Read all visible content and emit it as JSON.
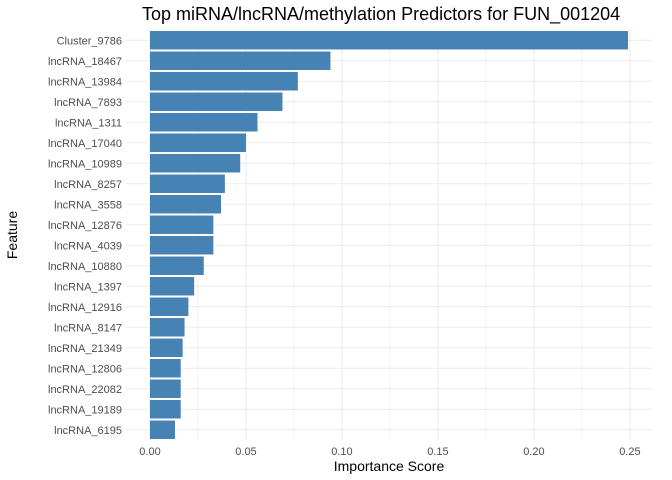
{
  "chart_data": {
    "type": "bar",
    "orientation": "horizontal",
    "title": "Top miRNA/lncRNA/methylation Predictors for FUN_001204",
    "xlabel": "Importance Score",
    "ylabel": "Feature",
    "categories": [
      "Cluster_9786",
      "lncRNA_18467",
      "lncRNA_13984",
      "lncRNA_7893",
      "lncRNA_1311",
      "lncRNA_17040",
      "lncRNA_10989",
      "lncRNA_8257",
      "lncRNA_3558",
      "lncRNA_12876",
      "lncRNA_4039",
      "lncRNA_10880",
      "lncRNA_1397",
      "lncRNA_12916",
      "lncRNA_8147",
      "lncRNA_21349",
      "lncRNA_12806",
      "lncRNA_22082",
      "lncRNA_19189",
      "lncRNA_6195"
    ],
    "values": [
      0.249,
      0.094,
      0.077,
      0.069,
      0.056,
      0.05,
      0.047,
      0.039,
      0.037,
      0.033,
      0.033,
      0.028,
      0.023,
      0.02,
      0.018,
      0.017,
      0.016,
      0.016,
      0.016,
      0.013
    ],
    "xlim": [
      -0.0125,
      0.2615
    ],
    "xticks": [
      0.0,
      0.05,
      0.1,
      0.15,
      0.2,
      0.25
    ],
    "xtick_labels": [
      "0.00",
      "0.05",
      "0.10",
      "0.15",
      "0.20",
      "0.25"
    ],
    "grid": true,
    "bar_color": "#4682B4",
    "grid_color": "#EBEBEB",
    "legend": "none"
  }
}
